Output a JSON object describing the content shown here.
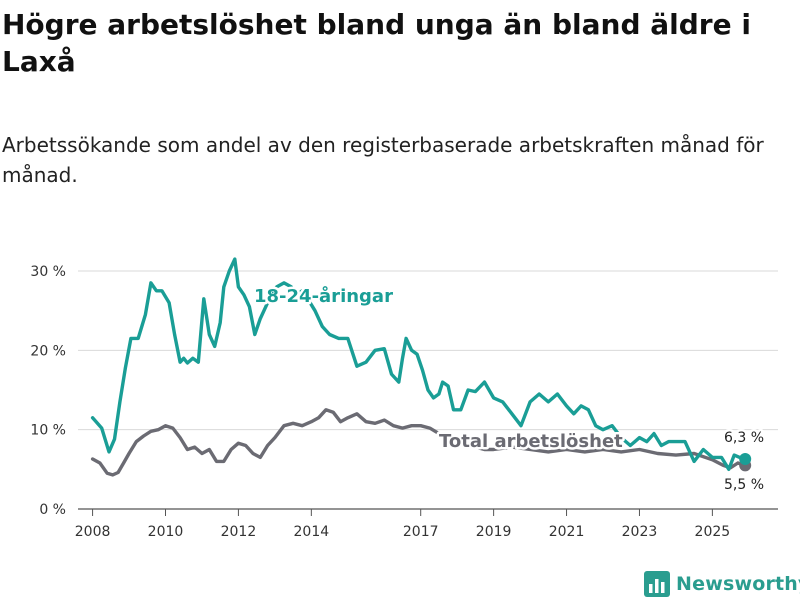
{
  "title": "Högre arbetslöshet bland unga än bland äldre i Laxå",
  "subtitle": "Arbetssökande som andel av den registerbaserade arbetskraften månad för månad.",
  "brand": {
    "name": "Newsworthy"
  },
  "colors": {
    "youth": "#1a9e96",
    "total": "#6b6b73",
    "grid": "#d9d9d9",
    "text": "#333333"
  },
  "chart_data": {
    "type": "line",
    "title": "Högre arbetslöshet bland unga än bland äldre i Laxå",
    "xlabel": "",
    "ylabel": "",
    "xlim": [
      2007.6,
      2026.8
    ],
    "ylim": [
      0,
      30
    ],
    "grid": true,
    "y_ticks": [
      0,
      10,
      20,
      30
    ],
    "y_tick_labels": [
      "0 %",
      "10 %",
      "20 %",
      "30 %"
    ],
    "x_ticks": [
      2008,
      2010,
      2012,
      2014,
      2017,
      2019,
      2021,
      2023,
      2025
    ],
    "x_tick_labels": [
      "2008",
      "2010",
      "2012",
      "2014",
      "2017",
      "2019",
      "2021",
      "2023",
      "2025"
    ],
    "series": [
      {
        "name": "18-24-åringar",
        "end_label": "6,3 %",
        "x": [
          2008.0,
          2008.25,
          2008.45,
          2008.6,
          2008.75,
          2008.9,
          2009.05,
          2009.25,
          2009.45,
          2009.6,
          2009.75,
          2009.9,
          2010.1,
          2010.25,
          2010.4,
          2010.5,
          2010.6,
          2010.75,
          2010.9,
          2011.05,
          2011.2,
          2011.35,
          2011.5,
          2011.6,
          2011.75,
          2011.9,
          2012.0,
          2012.15,
          2012.3,
          2012.45,
          2012.6,
          2012.75,
          2012.9,
          2013.05,
          2013.25,
          2013.45,
          2013.6,
          2013.75,
          2013.9,
          2014.1,
          2014.3,
          2014.5,
          2014.75,
          2015.0,
          2015.25,
          2015.5,
          2015.75,
          2016.0,
          2016.2,
          2016.4,
          2016.5,
          2016.6,
          2016.75,
          2016.9,
          2017.05,
          2017.2,
          2017.35,
          2017.5,
          2017.6,
          2017.75,
          2017.9,
          2018.1,
          2018.3,
          2018.5,
          2018.75,
          2019.0,
          2019.25,
          2019.5,
          2019.75,
          2020.0,
          2020.25,
          2020.5,
          2020.75,
          2021.0,
          2021.2,
          2021.4,
          2021.6,
          2021.8,
          2022.0,
          2022.25,
          2022.5,
          2022.75,
          2023.0,
          2023.2,
          2023.4,
          2023.6,
          2023.8,
          2024.0,
          2024.25,
          2024.5,
          2024.75,
          2025.0,
          2025.25,
          2025.45,
          2025.6,
          2025.75,
          2025.9
        ],
        "values": [
          11.5,
          10.2,
          7.2,
          8.8,
          13.5,
          17.8,
          21.5,
          21.5,
          24.5,
          28.5,
          27.5,
          27.5,
          26.0,
          22.0,
          18.5,
          19.0,
          18.4,
          19.0,
          18.5,
          26.5,
          22.0,
          20.5,
          23.5,
          28.0,
          30.0,
          31.5,
          28.0,
          27.0,
          25.5,
          22.0,
          24.0,
          25.5,
          27.0,
          28.0,
          28.5,
          28.0,
          27.0,
          27.5,
          26.5,
          25.0,
          23.0,
          22.0,
          21.5,
          21.5,
          18.0,
          18.5,
          20.0,
          20.2,
          17.0,
          16.0,
          19.0,
          21.5,
          20.0,
          19.5,
          17.5,
          15.0,
          14.0,
          14.5,
          16.0,
          15.5,
          12.5,
          12.5,
          15.0,
          14.8,
          16.0,
          14.0,
          13.5,
          12.0,
          10.5,
          13.5,
          14.5,
          13.5,
          14.5,
          13.0,
          12.0,
          13.0,
          12.5,
          10.5,
          10.0,
          10.5,
          9.0,
          8.0,
          9.0,
          8.5,
          9.5,
          8.0,
          8.5,
          8.5,
          8.5,
          6.0,
          7.5,
          6.5,
          6.5,
          5.0,
          6.8,
          6.5,
          6.3
        ]
      },
      {
        "name": "Total arbetslöshet",
        "end_label": "5,5 %",
        "x": [
          2008.0,
          2008.2,
          2008.4,
          2008.55,
          2008.7,
          2008.85,
          2009.0,
          2009.2,
          2009.4,
          2009.6,
          2009.8,
          2010.0,
          2010.2,
          2010.4,
          2010.6,
          2010.8,
          2011.0,
          2011.2,
          2011.4,
          2011.6,
          2011.8,
          2012.0,
          2012.2,
          2012.4,
          2012.6,
          2012.8,
          2013.0,
          2013.25,
          2013.5,
          2013.75,
          2014.0,
          2014.2,
          2014.4,
          2014.6,
          2014.8,
          2015.0,
          2015.25,
          2015.5,
          2015.75,
          2016.0,
          2016.25,
          2016.5,
          2016.75,
          2017.0,
          2017.25,
          2017.5,
          2017.75,
          2018.0,
          2018.25,
          2018.5,
          2018.75,
          2019.0,
          2019.5,
          2020.0,
          2020.5,
          2021.0,
          2021.5,
          2022.0,
          2022.5,
          2023.0,
          2023.5,
          2024.0,
          2024.5,
          2025.0,
          2025.3,
          2025.5,
          2025.7,
          2025.9
        ],
        "values": [
          6.3,
          5.8,
          4.5,
          4.3,
          4.6,
          5.8,
          7.0,
          8.5,
          9.2,
          9.8,
          10.0,
          10.5,
          10.2,
          9.0,
          7.5,
          7.8,
          7.0,
          7.5,
          6.0,
          6.0,
          7.5,
          8.3,
          8.0,
          7.0,
          6.5,
          8.0,
          9.0,
          10.5,
          10.8,
          10.5,
          11.0,
          11.5,
          12.5,
          12.2,
          11.0,
          11.5,
          12.0,
          11.0,
          10.8,
          11.2,
          10.5,
          10.2,
          10.5,
          10.5,
          10.2,
          9.5,
          9.0,
          8.5,
          8.0,
          7.8,
          7.5,
          7.5,
          7.8,
          7.5,
          7.2,
          7.5,
          7.2,
          7.5,
          7.2,
          7.5,
          7.0,
          6.8,
          7.0,
          6.2,
          5.5,
          5.2,
          5.8,
          5.5
        ]
      }
    ]
  }
}
